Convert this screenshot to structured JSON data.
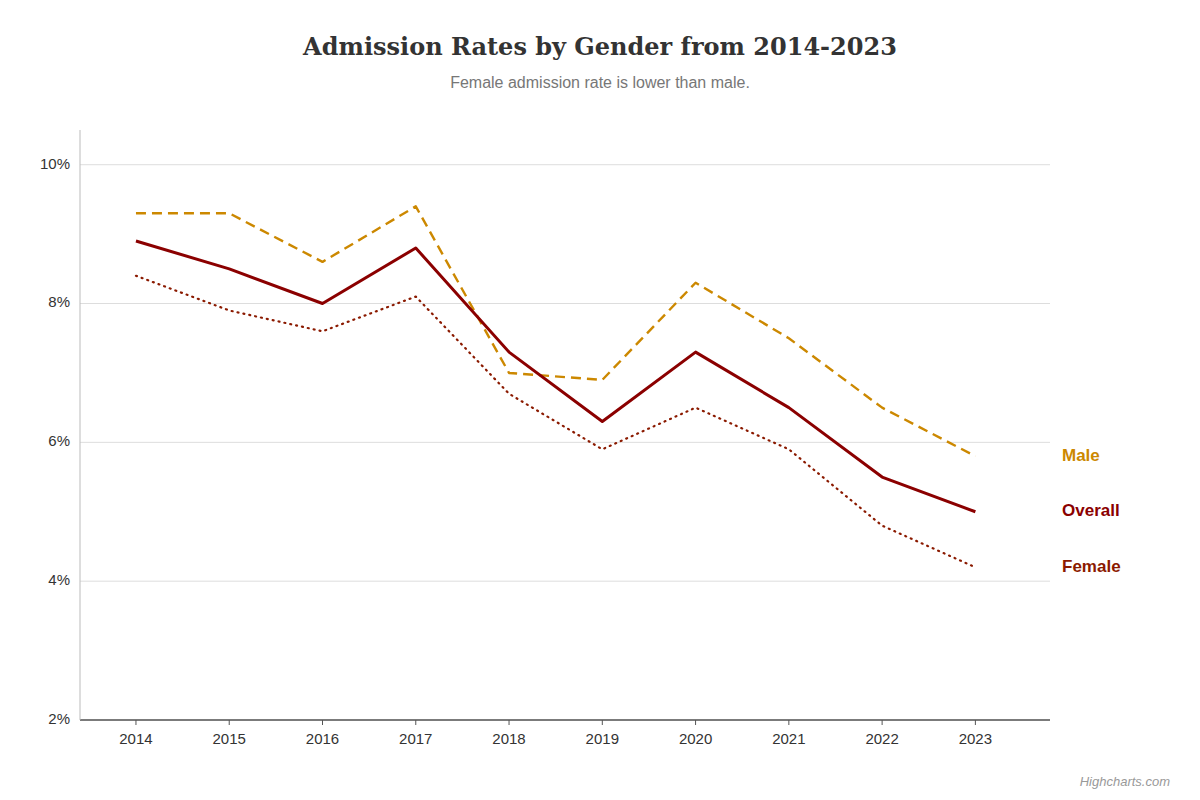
{
  "chart_data": {
    "type": "line",
    "title": "Admission Rates by Gender from 2014-2023",
    "subtitle": "Female admission rate is lower than male.",
    "annotations": [
      "Highcharts.com"
    ],
    "x": [
      2014,
      2015,
      2016,
      2017,
      2018,
      2019,
      2020,
      2021,
      2022,
      2023
    ],
    "series": [
      {
        "name": "Male",
        "color": "#cc8800",
        "line_style": "dashed",
        "values": [
          9.3,
          9.3,
          8.6,
          9.4,
          7.0,
          6.9,
          8.3,
          7.5,
          6.5,
          5.8
        ]
      },
      {
        "name": "Overall",
        "color": "#8b0000",
        "line_style": "solid",
        "values": [
          8.9,
          8.5,
          8.0,
          8.8,
          7.3,
          6.3,
          7.3,
          6.5,
          5.5,
          5.0
        ]
      },
      {
        "name": "Female",
        "color": "#8b1a00",
        "line_style": "dotted",
        "values": [
          8.4,
          7.9,
          7.6,
          8.1,
          6.7,
          5.9,
          6.5,
          5.9,
          4.8,
          4.2
        ]
      }
    ],
    "xlim": [
      2013.4,
      2023.8
    ],
    "xticks": [
      2014,
      2015,
      2016,
      2017,
      2018,
      2019,
      2020,
      2021,
      2022,
      2023
    ],
    "ylim": [
      2.0,
      10.5
    ],
    "yticks": [
      {
        "value": 2,
        "label": "2%"
      },
      {
        "value": 4,
        "label": "4%"
      },
      {
        "value": 6,
        "label": "6%"
      },
      {
        "value": 8,
        "label": "8%"
      },
      {
        "value": 10,
        "label": "10%"
      }
    ],
    "grid": true
  }
}
